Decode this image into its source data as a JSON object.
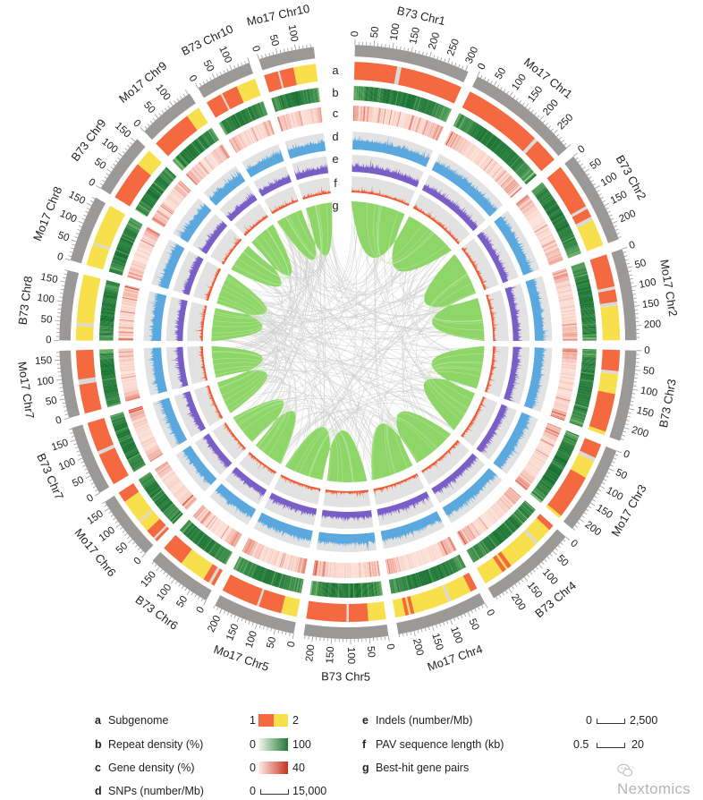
{
  "track_labels": [
    "a",
    "b",
    "c",
    "d",
    "e",
    "f",
    "g"
  ],
  "chromosomes": [
    {
      "name": "B73 Chr1",
      "length": 308,
      "subgenome": [
        [
          0,
          120,
          1
        ],
        [
          120,
          132,
          0
        ],
        [
          132,
          308,
          1
        ]
      ]
    },
    {
      "name": "Mo17 Chr1",
      "length": 301,
      "subgenome": [
        [
          0,
          222,
          1
        ],
        [
          222,
          232,
          0
        ],
        [
          232,
          301,
          1
        ]
      ]
    },
    {
      "name": "B73 Chr2",
      "length": 244,
      "subgenome": [
        [
          0,
          128,
          1
        ],
        [
          128,
          136,
          0
        ],
        [
          136,
          160,
          1
        ],
        [
          160,
          170,
          0
        ],
        [
          170,
          244,
          2
        ]
      ]
    },
    {
      "name": "Mo17 Chr2",
      "length": 237,
      "subgenome": [
        [
          0,
          90,
          1
        ],
        [
          90,
          98,
          0
        ],
        [
          98,
          132,
          1
        ],
        [
          132,
          142,
          0
        ],
        [
          142,
          237,
          2
        ]
      ]
    },
    {
      "name": "B73 Chr3",
      "length": 236,
      "subgenome": [
        [
          0,
          58,
          1
        ],
        [
          58,
          66,
          0
        ],
        [
          66,
          120,
          2
        ],
        [
          120,
          226,
          1
        ],
        [
          226,
          236,
          2
        ]
      ]
    },
    {
      "name": "Mo17 Chr3",
      "length": 232,
      "subgenome": [
        [
          0,
          40,
          1
        ],
        [
          40,
          50,
          0
        ],
        [
          50,
          100,
          2
        ],
        [
          100,
          224,
          1
        ],
        [
          224,
          232,
          2
        ]
      ]
    },
    {
      "name": "B73 Chr4",
      "length": 247,
      "subgenome": [
        [
          0,
          16,
          1
        ],
        [
          16,
          62,
          2
        ],
        [
          62,
          70,
          0
        ],
        [
          70,
          160,
          2
        ],
        [
          160,
          172,
          1
        ],
        [
          172,
          178,
          2
        ],
        [
          178,
          190,
          1
        ],
        [
          190,
          247,
          2
        ]
      ]
    },
    {
      "name": "Mo17 Chr4",
      "length": 242,
      "subgenome": [
        [
          0,
          20,
          1
        ],
        [
          20,
          80,
          2
        ],
        [
          80,
          88,
          0
        ],
        [
          88,
          188,
          2
        ],
        [
          188,
          198,
          1
        ],
        [
          198,
          204,
          2
        ],
        [
          204,
          214,
          1
        ],
        [
          214,
          242,
          2
        ]
      ]
    },
    {
      "name": "B73 Chr5",
      "length": 224,
      "subgenome": [
        [
          0,
          50,
          2
        ],
        [
          50,
          105,
          1
        ],
        [
          105,
          111,
          0
        ],
        [
          111,
          224,
          1
        ]
      ]
    },
    {
      "name": "Mo17 Chr5",
      "length": 220,
      "subgenome": [
        [
          0,
          45,
          2
        ],
        [
          45,
          110,
          1
        ],
        [
          110,
          116,
          0
        ],
        [
          116,
          220,
          1
        ]
      ]
    },
    {
      "name": "B73 Chr6",
      "length": 174,
      "subgenome": [
        [
          0,
          10,
          1
        ],
        [
          10,
          18,
          0
        ],
        [
          18,
          35,
          1
        ],
        [
          35,
          110,
          2
        ],
        [
          110,
          174,
          1
        ]
      ]
    },
    {
      "name": "Mo17 Chr6",
      "length": 170,
      "subgenome": [
        [
          0,
          8,
          1
        ],
        [
          8,
          14,
          0
        ],
        [
          14,
          40,
          1
        ],
        [
          40,
          70,
          2
        ],
        [
          70,
          76,
          0
        ],
        [
          76,
          140,
          2
        ],
        [
          140,
          170,
          1
        ]
      ]
    },
    {
      "name": "B73 Chr7",
      "length": 182,
      "subgenome": [
        [
          0,
          90,
          1
        ],
        [
          90,
          100,
          0
        ],
        [
          100,
          182,
          1
        ]
      ]
    },
    {
      "name": "Mo17 Chr7",
      "length": 174,
      "subgenome": [
        [
          0,
          80,
          1
        ],
        [
          80,
          94,
          0
        ],
        [
          94,
          174,
          1
        ]
      ]
    },
    {
      "name": "B73 Chr8",
      "length": 181,
      "subgenome": [
        [
          0,
          40,
          2
        ],
        [
          40,
          48,
          0
        ],
        [
          48,
          181,
          2
        ]
      ]
    },
    {
      "name": "Mo17 Chr8",
      "length": 174,
      "subgenome": [
        [
          0,
          60,
          2
        ],
        [
          60,
          66,
          0
        ],
        [
          66,
          174,
          2
        ]
      ]
    },
    {
      "name": "B73 Chr9",
      "length": 159,
      "subgenome": [
        [
          0,
          110,
          1
        ],
        [
          110,
          159,
          2
        ]
      ]
    },
    {
      "name": "Mo17 Chr9",
      "length": 154,
      "subgenome": [
        [
          0,
          115,
          1
        ],
        [
          115,
          154,
          2
        ]
      ]
    },
    {
      "name": "B73 Chr10",
      "length": 150,
      "subgenome": [
        [
          0,
          45,
          1
        ],
        [
          45,
          50,
          0
        ],
        [
          50,
          95,
          1
        ],
        [
          95,
          150,
          2
        ]
      ]
    },
    {
      "name": "Mo17 Chr10",
      "length": 148,
      "subgenome": [
        [
          0,
          40,
          1
        ],
        [
          40,
          45,
          0
        ],
        [
          45,
          85,
          1
        ],
        [
          85,
          148,
          2
        ]
      ]
    }
  ],
  "colors": {
    "ideogram": "#9b9997",
    "subgenome_1": "#f4693f",
    "subgenome_2": "#f8e04d",
    "gap": "#d9d9d9",
    "repeat_low": "#a6dc8f",
    "repeat_high": "#0d6a2a",
    "gene_low": "#fff0e9",
    "gene_high": "#d9412a",
    "track_bg": "#e2e2e2",
    "snps": "#5ba8de",
    "indels": "#7a5ec8",
    "pav": "#ef5a33",
    "gene_pairs": "#8fd668",
    "link_lines": "#cfcfcf"
  },
  "legend": {
    "a": {
      "letter": "a",
      "label": "Subgenome",
      "min": "1",
      "max": "2"
    },
    "b": {
      "letter": "b",
      "label": "Repeat density (%)",
      "min": "0",
      "max": "100"
    },
    "c": {
      "letter": "c",
      "label": "Gene density (%)",
      "min": "0",
      "max": "40"
    },
    "d": {
      "letter": "d",
      "label": "SNPs (number/Mb)",
      "min": "0",
      "max": "15,000"
    },
    "e": {
      "letter": "e",
      "label": "Indels (number/Mb)",
      "min": "0",
      "max": "2,500"
    },
    "f": {
      "letter": "f",
      "label": "PAV sequence length (kb)",
      "min": "0.5",
      "max": "20"
    },
    "g": {
      "letter": "g",
      "label": "Best-hit gene pairs"
    }
  },
  "watermark": "Nextomics"
}
